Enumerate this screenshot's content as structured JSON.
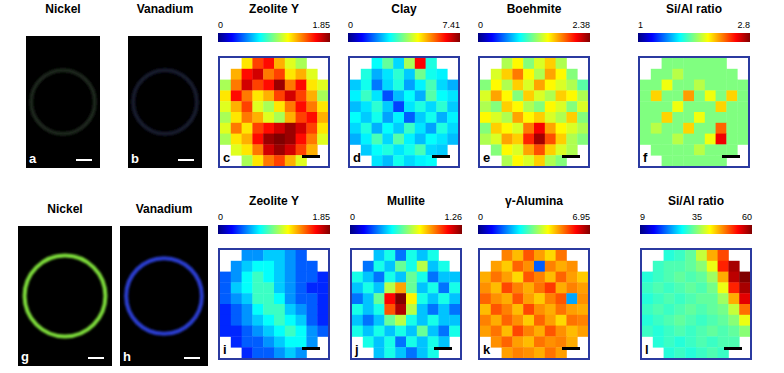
{
  "images": [
    {
      "panel": "a",
      "title": "Nickel",
      "color": "#1e261e"
    },
    {
      "panel": "b",
      "title": "Vanadium",
      "color": "#181a2e"
    },
    {
      "panel": "g",
      "title": "Nickel",
      "color": "#7ddc3a"
    },
    {
      "panel": "h",
      "title": "Vanadium",
      "color": "#2a3ccf"
    }
  ],
  "chart_data": [
    {
      "type": "heatmap",
      "panel": "c",
      "title": "Zeolite Y",
      "colorbar": {
        "range": [
          0,
          1.85
        ],
        "ticks": [
          0,
          1.85
        ]
      },
      "cells": [
        [
          null,
          null,
          1.2,
          1.5,
          1.6,
          1.3,
          1.1,
          1.0,
          null,
          null
        ],
        [
          null,
          1.3,
          1.6,
          1.7,
          1.4,
          1.5,
          1.2,
          1.3,
          1.1,
          null
        ],
        [
          1.0,
          1.4,
          1.7,
          1.5,
          1.6,
          1.8,
          1.4,
          1.6,
          1.2,
          1.1
        ],
        [
          1.2,
          1.6,
          1.4,
          1.2,
          1.3,
          1.5,
          1.7,
          1.5,
          1.3,
          1.0
        ],
        [
          1.1,
          1.3,
          1.5,
          1.1,
          1.0,
          1.2,
          1.4,
          1.6,
          1.4,
          1.2
        ],
        [
          1.0,
          1.2,
          1.4,
          1.3,
          1.1,
          1.0,
          1.3,
          1.5,
          1.6,
          1.3
        ],
        [
          1.1,
          1.4,
          1.2,
          1.5,
          1.6,
          1.7,
          1.8,
          1.7,
          1.5,
          1.2
        ],
        [
          1.0,
          1.2,
          1.3,
          1.6,
          1.8,
          1.85,
          1.8,
          1.6,
          1.4,
          1.1
        ],
        [
          null,
          1.1,
          1.2,
          1.4,
          1.7,
          1.8,
          1.7,
          1.5,
          1.3,
          null
        ],
        [
          null,
          null,
          1.0,
          1.2,
          1.4,
          1.5,
          1.3,
          1.1,
          null,
          null
        ]
      ]
    },
    {
      "type": "heatmap",
      "panel": "d",
      "title": "Clay",
      "colorbar": {
        "range": [
          0,
          7.41
        ],
        "ticks": [
          0,
          7.41
        ]
      },
      "cells": [
        [
          null,
          null,
          2.8,
          3.5,
          2.5,
          4.0,
          6.5,
          3.0,
          null,
          null
        ],
        [
          null,
          3.0,
          2.2,
          2.6,
          3.1,
          2.4,
          3.6,
          2.9,
          2.7,
          null
        ],
        [
          2.4,
          2.9,
          1.8,
          2.5,
          3.0,
          2.1,
          2.7,
          3.3,
          2.5,
          2.2
        ],
        [
          2.7,
          3.2,
          2.6,
          1.5,
          2.3,
          2.8,
          2.2,
          3.4,
          2.8,
          2.6
        ],
        [
          2.3,
          2.6,
          3.1,
          2.4,
          1.4,
          2.6,
          3.0,
          2.5,
          3.1,
          2.4
        ],
        [
          2.8,
          2.4,
          2.9,
          2.1,
          2.7,
          1.6,
          2.4,
          2.9,
          2.2,
          2.7
        ],
        [
          2.5,
          3.0,
          2.2,
          2.8,
          2.4,
          3.2,
          2.6,
          2.1,
          3.0,
          2.5
        ],
        [
          2.2,
          2.7,
          3.3,
          2.5,
          3.4,
          2.7,
          2.3,
          2.8,
          2.6,
          2.3
        ],
        [
          null,
          2.4,
          2.8,
          3.0,
          2.6,
          2.9,
          3.3,
          2.5,
          2.4,
          null
        ],
        [
          null,
          null,
          2.6,
          2.3,
          2.9,
          2.5,
          2.7,
          2.8,
          null,
          null
        ]
      ]
    },
    {
      "type": "heatmap",
      "panel": "e",
      "title": "Boehmite",
      "colorbar": {
        "range": [
          0,
          2.38
        ],
        "ticks": [
          0,
          2.38
        ]
      },
      "cells": [
        [
          null,
          null,
          1.3,
          1.5,
          1.2,
          1.4,
          1.6,
          1.3,
          null,
          null
        ],
        [
          null,
          1.4,
          1.6,
          1.8,
          1.5,
          1.3,
          1.7,
          1.5,
          1.2,
          null
        ],
        [
          1.2,
          1.5,
          1.3,
          1.6,
          1.4,
          1.7,
          1.5,
          1.4,
          1.3,
          1.1
        ],
        [
          1.4,
          1.7,
          1.5,
          1.2,
          1.6,
          1.4,
          1.3,
          1.6,
          1.5,
          1.3
        ],
        [
          1.3,
          1.2,
          1.6,
          1.5,
          1.3,
          1.2,
          1.5,
          1.4,
          1.2,
          1.4
        ],
        [
          1.5,
          1.4,
          1.3,
          1.7,
          1.5,
          1.6,
          1.4,
          1.3,
          1.6,
          1.2
        ],
        [
          1.2,
          1.6,
          1.5,
          1.4,
          1.8,
          2.1,
          1.7,
          1.5,
          1.4,
          1.3
        ],
        [
          1.3,
          1.4,
          1.7,
          1.6,
          2.0,
          2.3,
          1.9,
          1.6,
          1.3,
          1.2
        ],
        [
          null,
          1.2,
          1.5,
          1.4,
          1.7,
          1.9,
          1.6,
          1.4,
          1.3,
          null
        ],
        [
          null,
          null,
          1.3,
          1.5,
          1.4,
          1.6,
          1.3,
          1.2,
          null,
          null
        ]
      ]
    },
    {
      "type": "heatmap",
      "panel": "f",
      "title": "Si/Al ratio",
      "colorbar": {
        "range": [
          1,
          2.8
        ],
        "ticks": [
          1,
          2.8
        ]
      },
      "cells": [
        [
          null,
          null,
          1.9,
          1.9,
          1.9,
          1.9,
          1.9,
          1.9,
          null,
          null
        ],
        [
          null,
          1.9,
          1.9,
          2.0,
          1.9,
          1.9,
          1.9,
          1.9,
          1.9,
          null
        ],
        [
          1.9,
          1.9,
          2.1,
          1.9,
          1.9,
          2.0,
          1.9,
          1.9,
          1.9,
          1.9
        ],
        [
          1.9,
          2.2,
          1.9,
          1.9,
          2.3,
          1.9,
          2.1,
          1.9,
          2.2,
          1.9
        ],
        [
          1.9,
          1.9,
          1.9,
          2.1,
          1.9,
          1.9,
          1.9,
          2.2,
          1.9,
          1.9
        ],
        [
          1.9,
          1.9,
          2.2,
          1.9,
          1.9,
          2.1,
          1.9,
          1.9,
          1.9,
          1.9
        ],
        [
          1.9,
          2.0,
          1.9,
          1.9,
          2.2,
          1.9,
          1.9,
          2.4,
          1.9,
          1.9
        ],
        [
          1.9,
          1.9,
          1.9,
          2.0,
          1.9,
          1.9,
          2.1,
          2.6,
          1.9,
          1.9
        ],
        [
          null,
          1.9,
          1.9,
          1.9,
          1.9,
          2.0,
          1.9,
          1.9,
          1.9,
          null
        ],
        [
          null,
          null,
          1.9,
          1.9,
          1.9,
          1.9,
          1.9,
          1.9,
          null,
          null
        ]
      ]
    },
    {
      "type": "heatmap",
      "panel": "i",
      "title": "Zeolite Y",
      "colorbar": {
        "range": [
          0,
          1.85
        ],
        "ticks": [
          0,
          1.85
        ]
      },
      "cells": [
        [
          null,
          null,
          0.5,
          0.5,
          0.6,
          0.6,
          0.5,
          0.4,
          null,
          null
        ],
        [
          null,
          0.5,
          0.6,
          0.7,
          0.7,
          0.6,
          0.5,
          0.4,
          0.4,
          null
        ],
        [
          0.4,
          0.5,
          0.7,
          0.8,
          0.7,
          0.6,
          0.5,
          0.4,
          0.4,
          0.3
        ],
        [
          0.4,
          0.6,
          0.7,
          0.8,
          0.8,
          0.6,
          0.5,
          0.4,
          0.3,
          0.3
        ],
        [
          0.4,
          0.5,
          0.6,
          0.8,
          0.8,
          0.7,
          0.5,
          0.4,
          0.4,
          0.3
        ],
        [
          0.3,
          0.4,
          0.5,
          0.7,
          0.8,
          0.8,
          0.6,
          0.5,
          0.4,
          0.3
        ],
        [
          0.3,
          0.4,
          0.5,
          0.6,
          0.7,
          0.8,
          0.7,
          0.6,
          0.4,
          0.3
        ],
        [
          0.3,
          0.3,
          0.4,
          0.5,
          0.6,
          0.7,
          0.8,
          0.7,
          0.5,
          0.4
        ],
        [
          null,
          0.3,
          0.4,
          0.4,
          0.5,
          0.6,
          0.7,
          0.7,
          0.5,
          null
        ],
        [
          null,
          null,
          0.3,
          0.4,
          0.4,
          0.5,
          0.6,
          0.5,
          null,
          null
        ]
      ]
    },
    {
      "type": "heatmap",
      "panel": "j",
      "title": "Mullite",
      "colorbar": {
        "range": [
          0,
          1.26
        ],
        "ticks": [
          0,
          1.26
        ]
      },
      "cells": [
        [
          null,
          null,
          0.4,
          0.5,
          0.3,
          0.5,
          0.4,
          0.5,
          null,
          null
        ],
        [
          null,
          0.3,
          0.5,
          0.4,
          0.6,
          0.5,
          0.7,
          0.4,
          0.5,
          null
        ],
        [
          0.5,
          0.4,
          0.3,
          0.5,
          0.4,
          0.6,
          0.5,
          0.3,
          0.4,
          0.4
        ],
        [
          0.4,
          0.5,
          0.4,
          0.7,
          0.9,
          0.6,
          0.4,
          0.5,
          0.3,
          0.5
        ],
        [
          0.3,
          0.4,
          0.6,
          1.1,
          1.26,
          0.8,
          0.5,
          0.4,
          0.5,
          0.4
        ],
        [
          0.5,
          0.4,
          0.5,
          1.0,
          1.2,
          0.7,
          0.4,
          0.3,
          0.4,
          0.3
        ],
        [
          0.4,
          0.3,
          0.4,
          0.6,
          0.7,
          0.5,
          0.4,
          0.5,
          0.4,
          0.4
        ],
        [
          0.5,
          0.4,
          0.5,
          0.4,
          0.5,
          0.4,
          0.6,
          0.4,
          0.3,
          0.5
        ],
        [
          null,
          0.5,
          0.4,
          0.5,
          0.3,
          0.5,
          0.4,
          0.5,
          0.4,
          null
        ],
        [
          null,
          null,
          0.4,
          0.5,
          0.4,
          0.3,
          0.4,
          0.5,
          null,
          null
        ]
      ]
    },
    {
      "type": "heatmap",
      "panel": "k",
      "title": "γ-Alumina",
      "colorbar": {
        "range": [
          0,
          6.95
        ],
        "ticks": [
          0,
          6.95
        ]
      },
      "cells": [
        [
          null,
          null,
          5.2,
          4.8,
          5.5,
          5.0,
          4.6,
          5.3,
          null,
          null
        ],
        [
          null,
          5.0,
          4.7,
          5.4,
          5.1,
          1.5,
          5.2,
          4.9,
          5.1,
          null
        ],
        [
          4.9,
          5.3,
          5.0,
          4.6,
          5.5,
          5.2,
          4.8,
          5.4,
          5.0,
          4.7
        ],
        [
          5.1,
          4.8,
          5.6,
          5.2,
          4.9,
          5.3,
          5.7,
          4.9,
          5.2,
          5.0
        ],
        [
          5.4,
          5.1,
          4.9,
          5.5,
          5.0,
          4.7,
          5.2,
          5.5,
          2.0,
          5.1
        ],
        [
          4.8,
          5.5,
          5.2,
          4.8,
          5.6,
          5.1,
          4.9,
          5.3,
          5.0,
          4.9
        ],
        [
          5.2,
          4.9,
          5.4,
          5.1,
          4.7,
          5.4,
          5.0,
          4.6,
          5.3,
          5.2
        ],
        [
          5.0,
          5.3,
          4.8,
          5.6,
          5.2,
          4.9,
          5.5,
          5.1,
          4.8,
          5.0
        ],
        [
          null,
          5.1,
          5.4,
          5.0,
          4.8,
          5.3,
          5.1,
          5.2,
          4.9,
          null
        ],
        [
          null,
          null,
          5.0,
          5.2,
          5.1,
          4.9,
          5.3,
          5.0,
          null,
          null
        ]
      ]
    },
    {
      "type": "heatmap",
      "panel": "l",
      "title": "Si/Al ratio",
      "colorbar": {
        "range": [
          9,
          60
        ],
        "ticks": [
          9,
          35,
          60
        ]
      },
      "cells": [
        [
          null,
          null,
          30,
          31,
          33,
          38,
          45,
          50,
          null,
          null
        ],
        [
          null,
          31,
          32,
          32,
          33,
          35,
          40,
          52,
          58,
          null
        ],
        [
          30,
          31,
          32,
          33,
          32,
          33,
          36,
          45,
          57,
          60
        ],
        [
          31,
          32,
          31,
          32,
          33,
          32,
          34,
          40,
          52,
          58
        ],
        [
          30,
          31,
          32,
          31,
          32,
          33,
          33,
          36,
          45,
          55
        ],
        [
          31,
          32,
          31,
          32,
          33,
          32,
          33,
          34,
          38,
          48
        ],
        [
          30,
          31,
          32,
          33,
          32,
          31,
          32,
          33,
          35,
          40
        ],
        [
          31,
          30,
          31,
          32,
          31,
          32,
          33,
          32,
          33,
          35
        ],
        [
          null,
          30,
          31,
          30,
          31,
          32,
          31,
          32,
          32,
          null
        ],
        [
          null,
          null,
          30,
          31,
          30,
          31,
          32,
          31,
          null,
          null
        ]
      ]
    }
  ]
}
